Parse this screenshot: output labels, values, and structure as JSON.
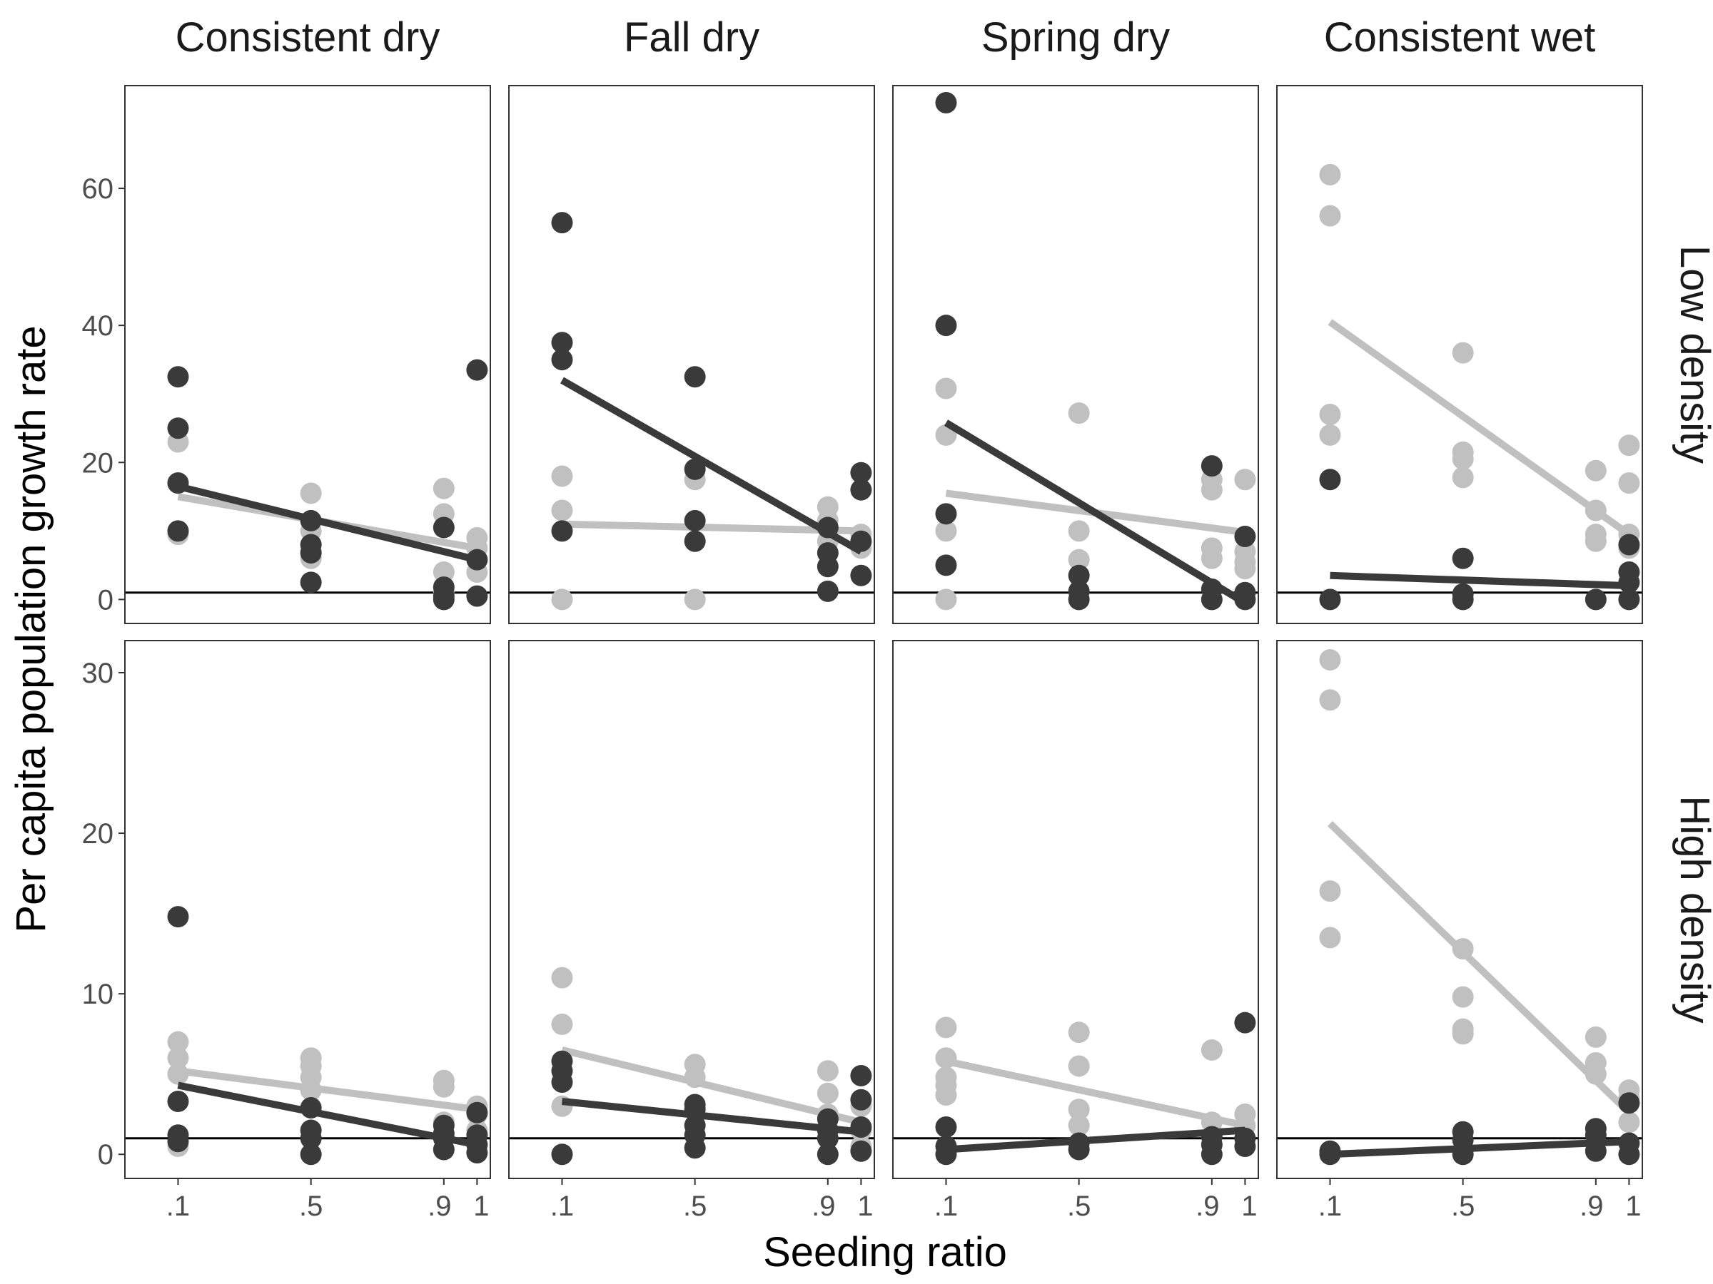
{
  "chart_data": {
    "type": "scatter",
    "xlabel": "Seeding ratio",
    "ylabel": "Per capita population growth rate",
    "columns": [
      "Consistent dry",
      "Fall dry",
      "Spring dry",
      "Consistent wet"
    ],
    "rows": [
      "Low density",
      "High density"
    ],
    "x_ticks": [
      {
        "value": 0.1,
        "label": ".1"
      },
      {
        "value": 0.5,
        "label": ".5"
      },
      {
        "value": 0.9,
        "label": ".9"
      },
      {
        "value": 1.0,
        "label": "1"
      }
    ],
    "xlim": [
      -0.06,
      1.04
    ],
    "row_axes": [
      {
        "ylim": [
          -3.5,
          75
        ],
        "ticks": [
          0,
          20,
          40,
          60
        ]
      },
      {
        "ylim": [
          -1.5,
          32
        ],
        "ticks": [
          0,
          10,
          20,
          30
        ]
      }
    ],
    "reference_line_y": 1,
    "series_colors": {
      "gray": "#c0c0c0",
      "dark": "#3a3a3a"
    },
    "panels": [
      {
        "row": 0,
        "col": 0,
        "points_gray": [
          [
            0.1,
            23
          ],
          [
            0.1,
            17
          ],
          [
            0.1,
            10
          ],
          [
            0.1,
            9.5
          ],
          [
            0.5,
            15.5
          ],
          [
            0.5,
            10
          ],
          [
            0.5,
            7
          ],
          [
            0.5,
            6
          ],
          [
            0.9,
            16.2
          ],
          [
            0.9,
            12.5
          ],
          [
            0.9,
            4
          ],
          [
            0.9,
            1.2
          ],
          [
            1,
            9
          ],
          [
            1,
            7.5
          ],
          [
            1,
            4
          ]
        ],
        "points_dark": [
          [
            0.1,
            32.5
          ],
          [
            0.1,
            25
          ],
          [
            0.1,
            17
          ],
          [
            0.1,
            10
          ],
          [
            0.5,
            11.5
          ],
          [
            0.5,
            8
          ],
          [
            0.5,
            6.8
          ],
          [
            0.5,
            2.5
          ],
          [
            0.9,
            10.5
          ],
          [
            0.9,
            1.8
          ],
          [
            0.9,
            0.5
          ],
          [
            0.9,
            0
          ],
          [
            1,
            33.5
          ],
          [
            1,
            5.8
          ],
          [
            1,
            0.5
          ]
        ],
        "line_gray": [
          [
            0.1,
            15
          ],
          [
            1,
            7.5
          ]
        ],
        "line_dark": [
          [
            0.1,
            16.5
          ],
          [
            1,
            5.8
          ]
        ]
      },
      {
        "row": 0,
        "col": 1,
        "points_gray": [
          [
            0.1,
            18
          ],
          [
            0.1,
            13
          ],
          [
            0.1,
            0
          ],
          [
            0.5,
            17.5
          ],
          [
            0.5,
            0
          ],
          [
            0.9,
            13.5
          ],
          [
            0.9,
            11.5
          ],
          [
            0.9,
            8.5
          ],
          [
            1,
            9.5
          ],
          [
            1,
            7.5
          ]
        ],
        "points_dark": [
          [
            0.1,
            55
          ],
          [
            0.1,
            37.5
          ],
          [
            0.1,
            35
          ],
          [
            0.1,
            10
          ],
          [
            0.5,
            32.5
          ],
          [
            0.5,
            19
          ],
          [
            0.5,
            11.5
          ],
          [
            0.5,
            8.5
          ],
          [
            0.9,
            10.5
          ],
          [
            0.9,
            6.8
          ],
          [
            0.9,
            4.8
          ],
          [
            0.9,
            1.2
          ],
          [
            1,
            18.5
          ],
          [
            1,
            16
          ],
          [
            1,
            8.5
          ],
          [
            1,
            3.5
          ]
        ],
        "line_gray": [
          [
            0.1,
            11
          ],
          [
            1,
            10
          ]
        ],
        "line_dark": [
          [
            0.1,
            32
          ],
          [
            1,
            7
          ]
        ]
      },
      {
        "row": 0,
        "col": 2,
        "points_gray": [
          [
            0.1,
            30.8
          ],
          [
            0.1,
            24
          ],
          [
            0.1,
            10
          ],
          [
            0.1,
            0
          ],
          [
            0.5,
            27.2
          ],
          [
            0.5,
            10
          ],
          [
            0.5,
            5.8
          ],
          [
            0.9,
            17.5
          ],
          [
            0.9,
            16
          ],
          [
            0.9,
            7.5
          ],
          [
            0.9,
            6
          ],
          [
            1,
            17.5
          ],
          [
            1,
            7
          ],
          [
            1,
            5.5
          ],
          [
            1,
            4.5
          ]
        ],
        "points_dark": [
          [
            0.1,
            72.5
          ],
          [
            0.1,
            40
          ],
          [
            0.1,
            12.5
          ],
          [
            0.1,
            5
          ],
          [
            0.5,
            3.5
          ],
          [
            0.5,
            1.2
          ],
          [
            0.5,
            0
          ],
          [
            0.9,
            19.5
          ],
          [
            0.9,
            1.5
          ],
          [
            0.9,
            0
          ],
          [
            1,
            9.2
          ],
          [
            1,
            1
          ],
          [
            1,
            0
          ]
        ],
        "line_gray": [
          [
            0.1,
            15.5
          ],
          [
            1,
            9.8
          ]
        ],
        "line_dark": [
          [
            0.1,
            25.8
          ],
          [
            1,
            -0.5
          ]
        ]
      },
      {
        "row": 0,
        "col": 3,
        "points_gray": [
          [
            0.1,
            62
          ],
          [
            0.1,
            56
          ],
          [
            0.1,
            27
          ],
          [
            0.1,
            24
          ],
          [
            0.5,
            36
          ],
          [
            0.5,
            21.5
          ],
          [
            0.5,
            20.5
          ],
          [
            0.5,
            17.8
          ],
          [
            0.9,
            18.8
          ],
          [
            0.9,
            13
          ],
          [
            0.9,
            9.5
          ],
          [
            0.9,
            8.5
          ],
          [
            1,
            22.5
          ],
          [
            1,
            17
          ],
          [
            1,
            9.5
          ],
          [
            1,
            7.5
          ]
        ],
        "points_dark": [
          [
            0.1,
            17.5
          ],
          [
            0.1,
            0
          ],
          [
            0.5,
            6
          ],
          [
            0.5,
            0.8
          ],
          [
            0.5,
            0
          ],
          [
            0.9,
            0
          ],
          [
            1,
            8
          ],
          [
            1,
            4
          ],
          [
            1,
            2.5
          ],
          [
            1,
            0
          ]
        ],
        "line_gray": [
          [
            0.1,
            40.5
          ],
          [
            1,
            9.5
          ]
        ],
        "line_dark": [
          [
            0.1,
            3.5
          ],
          [
            1,
            2
          ]
        ]
      },
      {
        "row": 1,
        "col": 0,
        "points_gray": [
          [
            0.1,
            7
          ],
          [
            0.1,
            6
          ],
          [
            0.1,
            5
          ],
          [
            0.1,
            0.5
          ],
          [
            0.5,
            6
          ],
          [
            0.5,
            5.5
          ],
          [
            0.5,
            4.8
          ],
          [
            0.5,
            4
          ],
          [
            0.9,
            4.6
          ],
          [
            0.9,
            4.2
          ],
          [
            0.9,
            2
          ],
          [
            1,
            3
          ],
          [
            1,
            2.5
          ],
          [
            1,
            1.5
          ]
        ],
        "points_dark": [
          [
            0.1,
            14.8
          ],
          [
            0.1,
            3.3
          ],
          [
            0.1,
            1.2
          ],
          [
            0.1,
            0.8
          ],
          [
            0.5,
            2.9
          ],
          [
            0.5,
            1.5
          ],
          [
            0.5,
            1
          ],
          [
            0.5,
            0
          ],
          [
            0.9,
            1.8
          ],
          [
            0.9,
            1.3
          ],
          [
            0.9,
            1
          ],
          [
            0.9,
            0.3
          ],
          [
            1,
            2.6
          ],
          [
            1,
            1.2
          ],
          [
            1,
            0.6
          ],
          [
            1,
            0.1
          ]
        ],
        "line_gray": [
          [
            0.1,
            5.2
          ],
          [
            1,
            2.8
          ]
        ],
        "line_dark": [
          [
            0.1,
            4.3
          ],
          [
            1,
            0.6
          ]
        ]
      },
      {
        "row": 1,
        "col": 1,
        "points_gray": [
          [
            0.1,
            11
          ],
          [
            0.1,
            8.1
          ],
          [
            0.1,
            3
          ],
          [
            0.5,
            5.6
          ],
          [
            0.5,
            4.8
          ],
          [
            0.9,
            5.2
          ],
          [
            0.9,
            3.8
          ],
          [
            0.9,
            2.5
          ],
          [
            1,
            3
          ],
          [
            1,
            1.5
          ],
          [
            1,
            0.5
          ]
        ],
        "points_dark": [
          [
            0.1,
            5.8
          ],
          [
            0.1,
            5.2
          ],
          [
            0.1,
            4.5
          ],
          [
            0.1,
            0
          ],
          [
            0.5,
            3.1
          ],
          [
            0.5,
            2.8
          ],
          [
            0.5,
            1.8
          ],
          [
            0.5,
            1.2
          ],
          [
            0.5,
            0.4
          ],
          [
            0.9,
            2.2
          ],
          [
            0.9,
            1.5
          ],
          [
            0.9,
            1
          ],
          [
            0.9,
            0
          ],
          [
            1,
            4.9
          ],
          [
            1,
            3.4
          ],
          [
            1,
            1.7
          ],
          [
            1,
            0.2
          ]
        ],
        "line_gray": [
          [
            0.1,
            6.5
          ],
          [
            1,
            2
          ]
        ],
        "line_dark": [
          [
            0.1,
            3.3
          ],
          [
            1,
            1.4
          ]
        ]
      },
      {
        "row": 1,
        "col": 2,
        "points_gray": [
          [
            0.1,
            7.9
          ],
          [
            0.1,
            6
          ],
          [
            0.1,
            4.8
          ],
          [
            0.1,
            4.3
          ],
          [
            0.1,
            3.7
          ],
          [
            0.5,
            7.6
          ],
          [
            0.5,
            5.5
          ],
          [
            0.5,
            2.8
          ],
          [
            0.5,
            1.8
          ],
          [
            0.9,
            6.5
          ],
          [
            0.9,
            2
          ],
          [
            1,
            2.5
          ],
          [
            1,
            1.8
          ]
        ],
        "points_dark": [
          [
            0.1,
            1.7
          ],
          [
            0.1,
            0.5
          ],
          [
            0.1,
            0
          ],
          [
            0.5,
            0.7
          ],
          [
            0.5,
            0.3
          ],
          [
            0.9,
            1.1
          ],
          [
            0.9,
            0.6
          ],
          [
            0.9,
            0
          ],
          [
            1,
            8.2
          ],
          [
            1,
            1
          ],
          [
            1,
            0.5
          ]
        ],
        "line_gray": [
          [
            0.1,
            5.8
          ],
          [
            1,
            1.8
          ]
        ],
        "line_dark": [
          [
            0.1,
            0.3
          ],
          [
            1,
            1.5
          ]
        ]
      },
      {
        "row": 1,
        "col": 3,
        "points_gray": [
          [
            0.1,
            30.8
          ],
          [
            0.1,
            28.3
          ],
          [
            0.1,
            16.4
          ],
          [
            0.1,
            13.5
          ],
          [
            0.5,
            12.8
          ],
          [
            0.5,
            9.8
          ],
          [
            0.5,
            7.8
          ],
          [
            0.5,
            7.5
          ],
          [
            0.9,
            7.3
          ],
          [
            0.9,
            5.7
          ],
          [
            0.9,
            5
          ],
          [
            1,
            4
          ],
          [
            1,
            3.5
          ],
          [
            1,
            2
          ]
        ],
        "points_dark": [
          [
            0.1,
            0.2
          ],
          [
            0.1,
            0
          ],
          [
            0.5,
            1.4
          ],
          [
            0.5,
            0.9
          ],
          [
            0.5,
            0
          ],
          [
            0.9,
            1.6
          ],
          [
            0.9,
            1.2
          ],
          [
            0.9,
            0.2
          ],
          [
            1,
            3.2
          ],
          [
            1,
            0.7
          ],
          [
            1,
            0
          ]
        ],
        "line_gray": [
          [
            0.1,
            20.6
          ],
          [
            1,
            2.6
          ]
        ],
        "line_dark": [
          [
            0.1,
            0
          ],
          [
            1,
            0.8
          ]
        ]
      }
    ]
  }
}
